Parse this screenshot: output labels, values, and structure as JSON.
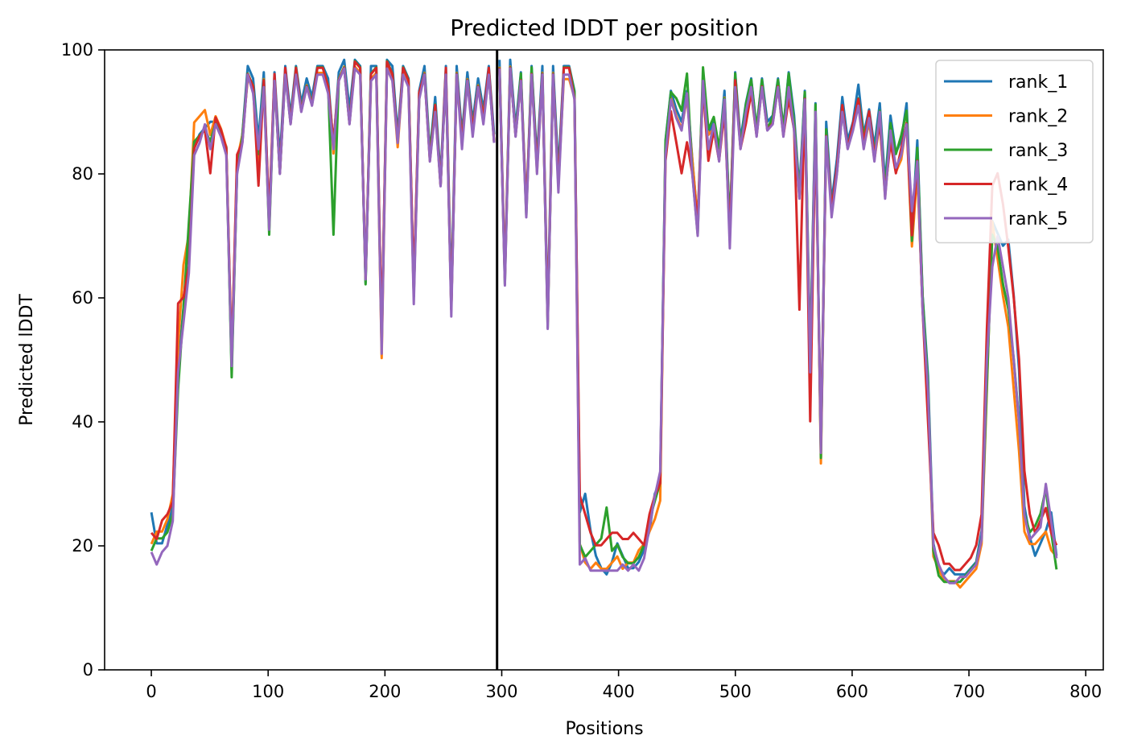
{
  "chart_data": {
    "type": "line",
    "title": "Predicted lDDT per position",
    "xlabel": "Positions",
    "ylabel": "Predicted lDDT",
    "xlim": [
      -40,
      815
    ],
    "ylim": [
      0,
      100
    ],
    "xticks": [
      0,
      100,
      200,
      300,
      400,
      500,
      600,
      700,
      800
    ],
    "yticks": [
      0,
      20,
      40,
      60,
      80,
      100
    ],
    "xtick_labels": [
      "0",
      "100",
      "200",
      "300",
      "400",
      "500",
      "600",
      "700",
      "800"
    ],
    "ytick_labels": [
      "0",
      "20",
      "40",
      "60",
      "80",
      "100"
    ],
    "grid": false,
    "legend_position": "top-right",
    "vline_x": 296,
    "chain_breaks": [
      296
    ],
    "series": [
      {
        "name": "rank_1",
        "color": "#1f77b4",
        "offset": 0.4,
        "values": [
          25,
          20,
          20,
          23,
          26,
          48,
          58,
          70,
          84,
          86,
          87,
          88,
          88,
          86,
          84,
          48,
          80,
          86,
          97,
          95,
          85,
          96,
          72,
          96,
          82,
          97,
          89,
          97,
          91,
          95,
          92,
          97,
          97,
          95,
          84,
          96,
          98,
          90,
          98,
          97,
          62,
          97,
          97,
          53,
          98,
          97,
          86,
          97,
          95,
          61,
          93,
          97,
          83,
          92,
          79,
          97,
          60,
          97,
          86,
          96,
          88,
          95,
          90,
          97,
          86,
          98,
          63,
          98,
          87,
          96,
          74,
          97,
          82,
          97,
          57,
          97,
          80,
          97,
          97,
          93,
          25,
          28,
          22,
          18,
          16,
          15,
          17,
          20,
          18,
          16,
          16,
          17,
          19,
          22,
          28,
          30,
          85,
          93,
          90,
          88,
          93,
          82,
          72,
          95,
          86,
          88,
          83,
          93,
          71,
          96,
          85,
          91,
          95,
          87,
          95,
          88,
          89,
          95,
          87,
          96,
          89,
          77,
          93,
          50,
          91,
          35,
          88,
          75,
          82,
          92,
          85,
          88,
          94,
          86,
          90,
          84,
          91,
          78,
          89,
          83,
          85,
          91,
          70,
          85,
          60,
          47,
          20,
          16,
          15,
          16,
          15,
          15,
          15,
          16,
          17,
          22,
          48,
          72,
          70,
          68,
          69,
          60,
          48,
          26,
          21,
          18,
          20,
          22,
          25,
          18
        ]
      },
      {
        "name": "rank_2",
        "color": "#ff7f0e",
        "offset": 0.3,
        "values": [
          20,
          22,
          22,
          24,
          28,
          52,
          65,
          70,
          88,
          89,
          90,
          86,
          89,
          87,
          84,
          50,
          82,
          86,
          95,
          94,
          80,
          95,
          71,
          95,
          80,
          96,
          88,
          96,
          90,
          94,
          91,
          96,
          96,
          94,
          83,
          95,
          97,
          88,
          97,
          96,
          63,
          95,
          96,
          50,
          97,
          95,
          84,
          96,
          94,
          60,
          92,
          96,
          82,
          90,
          78,
          96,
          58,
          96,
          85,
          95,
          87,
          94,
          89,
          96,
          85,
          97,
          63,
          97,
          86,
          95,
          74,
          96,
          80,
          96,
          56,
          96,
          78,
          95,
          95,
          92,
          20,
          17,
          16,
          17,
          16,
          16,
          17,
          18,
          16,
          17,
          17,
          19,
          20,
          22,
          24,
          27,
          84,
          92,
          89,
          87,
          92,
          82,
          72,
          94,
          86,
          87,
          82,
          92,
          70,
          95,
          84,
          90,
          94,
          86,
          94,
          87,
          88,
          94,
          86,
          95,
          88,
          76,
          92,
          48,
          90,
          33,
          86,
          74,
          80,
          90,
          84,
          87,
          91,
          84,
          88,
          82,
          88,
          76,
          86,
          80,
          82,
          88,
          68,
          80,
          58,
          44,
          18,
          16,
          14,
          14,
          14,
          13,
          14,
          15,
          16,
          20,
          45,
          72,
          66,
          60,
          55,
          45,
          35,
          22,
          20,
          20,
          21,
          22,
          19,
          18
        ]
      },
      {
        "name": "rank_3",
        "color": "#2ca02c",
        "offset": 0.2,
        "values": [
          19,
          21,
          21,
          22,
          25,
          45,
          58,
          72,
          85,
          86,
          87,
          85,
          88,
          86,
          84,
          47,
          80,
          86,
          96,
          94,
          83,
          95,
          70,
          95,
          80,
          96,
          88,
          97,
          90,
          94,
          91,
          97,
          97,
          94,
          70,
          95,
          97,
          88,
          98,
          97,
          62,
          96,
          97,
          52,
          98,
          96,
          85,
          97,
          95,
          60,
          92,
          96,
          83,
          91,
          78,
          96,
          58,
          96,
          85,
          95,
          87,
          94,
          89,
          96,
          85,
          97,
          62,
          97,
          86,
          96,
          73,
          97,
          81,
          96,
          55,
          96,
          78,
          97,
          97,
          93,
          20,
          18,
          19,
          20,
          21,
          26,
          19,
          20,
          18,
          17,
          17,
          18,
          20,
          24,
          27,
          30,
          85,
          93,
          92,
          90,
          96,
          80,
          70,
          97,
          87,
          89,
          84,
          92,
          71,
          96,
          84,
          91,
          95,
          87,
          95,
          87,
          89,
          95,
          87,
          96,
          88,
          76,
          93,
          49,
          91,
          34,
          87,
          74,
          80,
          90,
          84,
          87,
          92,
          86,
          89,
          83,
          90,
          77,
          88,
          83,
          86,
          90,
          69,
          84,
          60,
          46,
          19,
          15,
          14,
          14,
          14,
          14,
          15,
          16,
          17,
          21,
          46,
          70,
          68,
          62,
          58,
          50,
          40,
          25,
          22,
          23,
          25,
          29,
          22,
          16
        ]
      },
      {
        "name": "rank_4",
        "color": "#d62728",
        "offset": 0.1,
        "values": [
          22,
          21,
          24,
          25,
          27,
          59,
          60,
          65,
          84,
          86,
          87,
          80,
          89,
          87,
          84,
          50,
          83,
          85,
          96,
          94,
          78,
          95,
          73,
          96,
          80,
          97,
          88,
          97,
          90,
          94,
          91,
          97,
          97,
          94,
          85,
          95,
          97,
          88,
          98,
          97,
          63,
          96,
          97,
          54,
          98,
          96,
          85,
          97,
          95,
          62,
          93,
          96,
          82,
          91,
          78,
          97,
          58,
          96,
          85,
          95,
          87,
          94,
          89,
          97,
          85,
          97,
          63,
          97,
          86,
          95,
          74,
          96,
          81,
          96,
          56,
          96,
          78,
          97,
          97,
          92,
          28,
          25,
          22,
          20,
          20,
          21,
          22,
          22,
          21,
          21,
          22,
          21,
          20,
          25,
          28,
          30,
          82,
          90,
          85,
          80,
          85,
          80,
          72,
          94,
          82,
          87,
          82,
          90,
          70,
          95,
          84,
          88,
          93,
          86,
          94,
          87,
          88,
          94,
          86,
          92,
          87,
          58,
          92,
          40,
          88,
          36,
          86,
          74,
          81,
          91,
          84,
          88,
          92,
          85,
          90,
          83,
          88,
          77,
          85,
          80,
          84,
          88,
          70,
          82,
          58,
          40,
          22,
          20,
          17,
          17,
          16,
          16,
          17,
          18,
          20,
          25,
          55,
          78,
          80,
          75,
          68,
          60,
          50,
          32,
          25,
          22,
          24,
          26,
          22,
          20
        ]
      },
      {
        "name": "rank_5",
        "color": "#9467bd",
        "offset": 0.0,
        "values": [
          19,
          17,
          19,
          20,
          24,
          48,
          56,
          64,
          83,
          85,
          88,
          84,
          88,
          86,
          83,
          49,
          80,
          85,
          96,
          93,
          84,
          94,
          71,
          95,
          80,
          96,
          88,
          96,
          90,
          94,
          91,
          96,
          96,
          93,
          84,
          95,
          97,
          88,
          97,
          96,
          63,
          95,
          96,
          51,
          97,
          95,
          85,
          96,
          94,
          59,
          92,
          96,
          82,
          90,
          78,
          96,
          57,
          96,
          84,
          95,
          86,
          94,
          88,
          96,
          85,
          97,
          62,
          97,
          86,
          95,
          73,
          96,
          80,
          96,
          55,
          96,
          77,
          96,
          96,
          92,
          17,
          18,
          16,
          16,
          16,
          16,
          16,
          16,
          17,
          16,
          17,
          16,
          18,
          23,
          28,
          32,
          83,
          92,
          89,
          87,
          93,
          80,
          70,
          95,
          84,
          88,
          82,
          92,
          68,
          94,
          84,
          90,
          94,
          86,
          94,
          87,
          88,
          94,
          86,
          94,
          87,
          76,
          92,
          48,
          90,
          35,
          86,
          73,
          80,
          90,
          84,
          87,
          91,
          84,
          89,
          82,
          90,
          76,
          87,
          81,
          83,
          88,
          74,
          82,
          58,
          45,
          20,
          17,
          15,
          14,
          14,
          15,
          15,
          16,
          17,
          21,
          50,
          65,
          70,
          65,
          60,
          50,
          40,
          25,
          21,
          22,
          23,
          30,
          24,
          18
        ]
      }
    ]
  }
}
